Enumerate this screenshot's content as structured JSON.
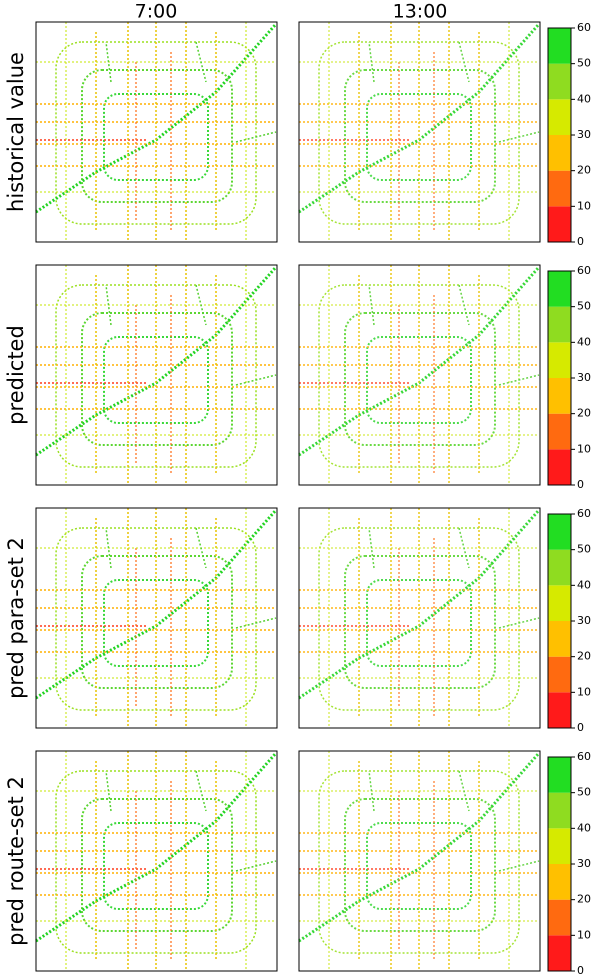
{
  "columns": [
    "7:00",
    "13:00"
  ],
  "rows": [
    "historical value",
    "predicted",
    "pred para-set 2",
    "pred route-set 2"
  ],
  "colorbar": {
    "ylim": [
      0,
      60
    ],
    "yticks": [
      0,
      10,
      20,
      30,
      40,
      50,
      60
    ],
    "colors": [
      "#ff1a1a",
      "#ff6a10",
      "#ffc000",
      "#d6ea00",
      "#8fdc20",
      "#22dd22"
    ]
  }
}
